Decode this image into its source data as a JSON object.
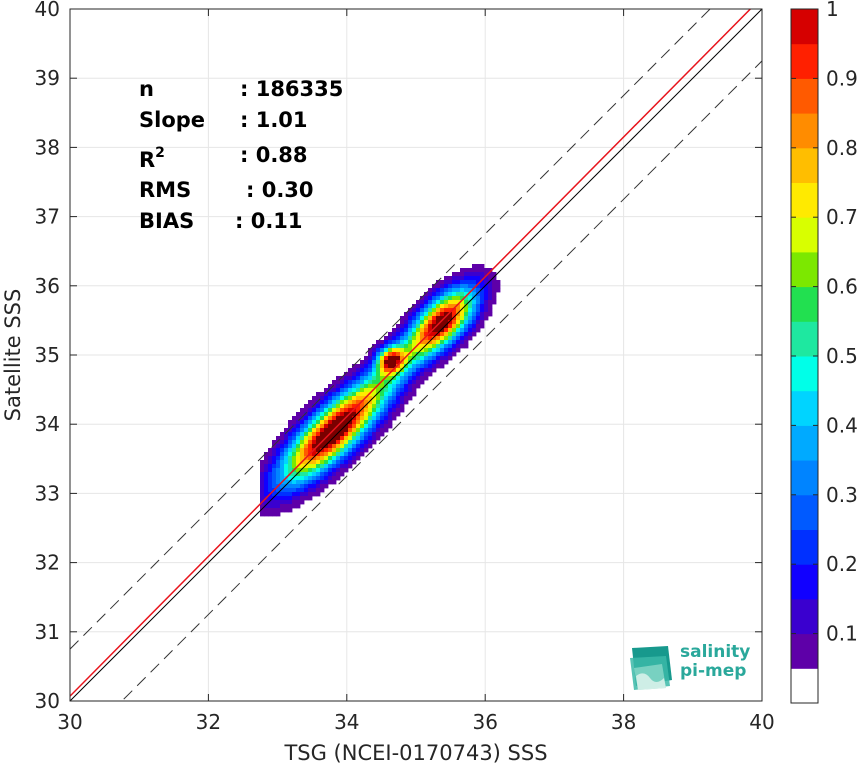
{
  "chart_data": {
    "type": "contour-density-scatter",
    "xlabel": "TSG (NCEI-0170743) SSS",
    "ylabel": "Satellite SSS",
    "xlim": [
      30,
      40
    ],
    "ylim": [
      30,
      40
    ],
    "xticks": [
      "30",
      "32",
      "34",
      "36",
      "38",
      "40"
    ],
    "yticks": [
      "30",
      "31",
      "32",
      "33",
      "34",
      "35",
      "36",
      "37",
      "38",
      "39",
      "40"
    ],
    "grid": true,
    "lines": {
      "identity": {
        "slope": 1,
        "intercept": 0,
        "color": "#000000"
      },
      "regression": {
        "slope": 1.01,
        "intercept": -0.23,
        "color": "#e8141c"
      },
      "upper_dashed": {
        "slope": 1,
        "intercept": 0.75
      },
      "lower_dashed": {
        "slope": 1,
        "intercept": -0.75
      }
    },
    "density_peaks": [
      {
        "x": 33.7,
        "y": 33.8,
        "max_level": 1.0
      },
      {
        "x": 35.4,
        "y": 35.5,
        "max_level": 0.9
      },
      {
        "x": 34.63,
        "y": 34.93,
        "max_level": 0.85
      }
    ],
    "colorbar": {
      "range": [
        0,
        1
      ],
      "tick_labels": [
        "0.1",
        "0.2",
        "0.3",
        "0.4",
        "0.5",
        "0.6",
        "0.7",
        "0.8",
        "0.9",
        "1"
      ],
      "tick_values": [
        0.1,
        0.2,
        0.3,
        0.4,
        0.5,
        0.6,
        0.7,
        0.8,
        0.9,
        1.0
      ],
      "levels": [
        0.05,
        0.1,
        0.15,
        0.2,
        0.25,
        0.3,
        0.35,
        0.4,
        0.45,
        0.5,
        0.55,
        0.6,
        0.65,
        0.7,
        0.75,
        0.8,
        0.85,
        0.9,
        0.95,
        1.0
      ],
      "colors": [
        "#ffffff",
        "#5e00a8",
        "#3a00cf",
        "#1100ff",
        "#0030ff",
        "#005aff",
        "#0084ff",
        "#00aaff",
        "#00d4ff",
        "#00ffe8",
        "#1ee8a0",
        "#22e050",
        "#7ce800",
        "#d8ff00",
        "#ffea00",
        "#ffbe00",
        "#ff8c00",
        "#ff5a00",
        "#ff2000",
        "#d60000",
        "#7a0000"
      ]
    },
    "stats": {
      "n_label": "n",
      "n_value": ": 186335",
      "slope_label": "Slope",
      "slope_value": ": 1.01",
      "r2_label": "R",
      "r2_sup": "2",
      "r2_value": ": 0.88",
      "rms_label": "RMS",
      "rms_value": ": 0.30",
      "bias_label": "BIAS",
      "bias_value": ": 0.11"
    }
  },
  "logo": {
    "line1": "salinity",
    "line2": "pi-mep",
    "color": "#2aa89b"
  }
}
